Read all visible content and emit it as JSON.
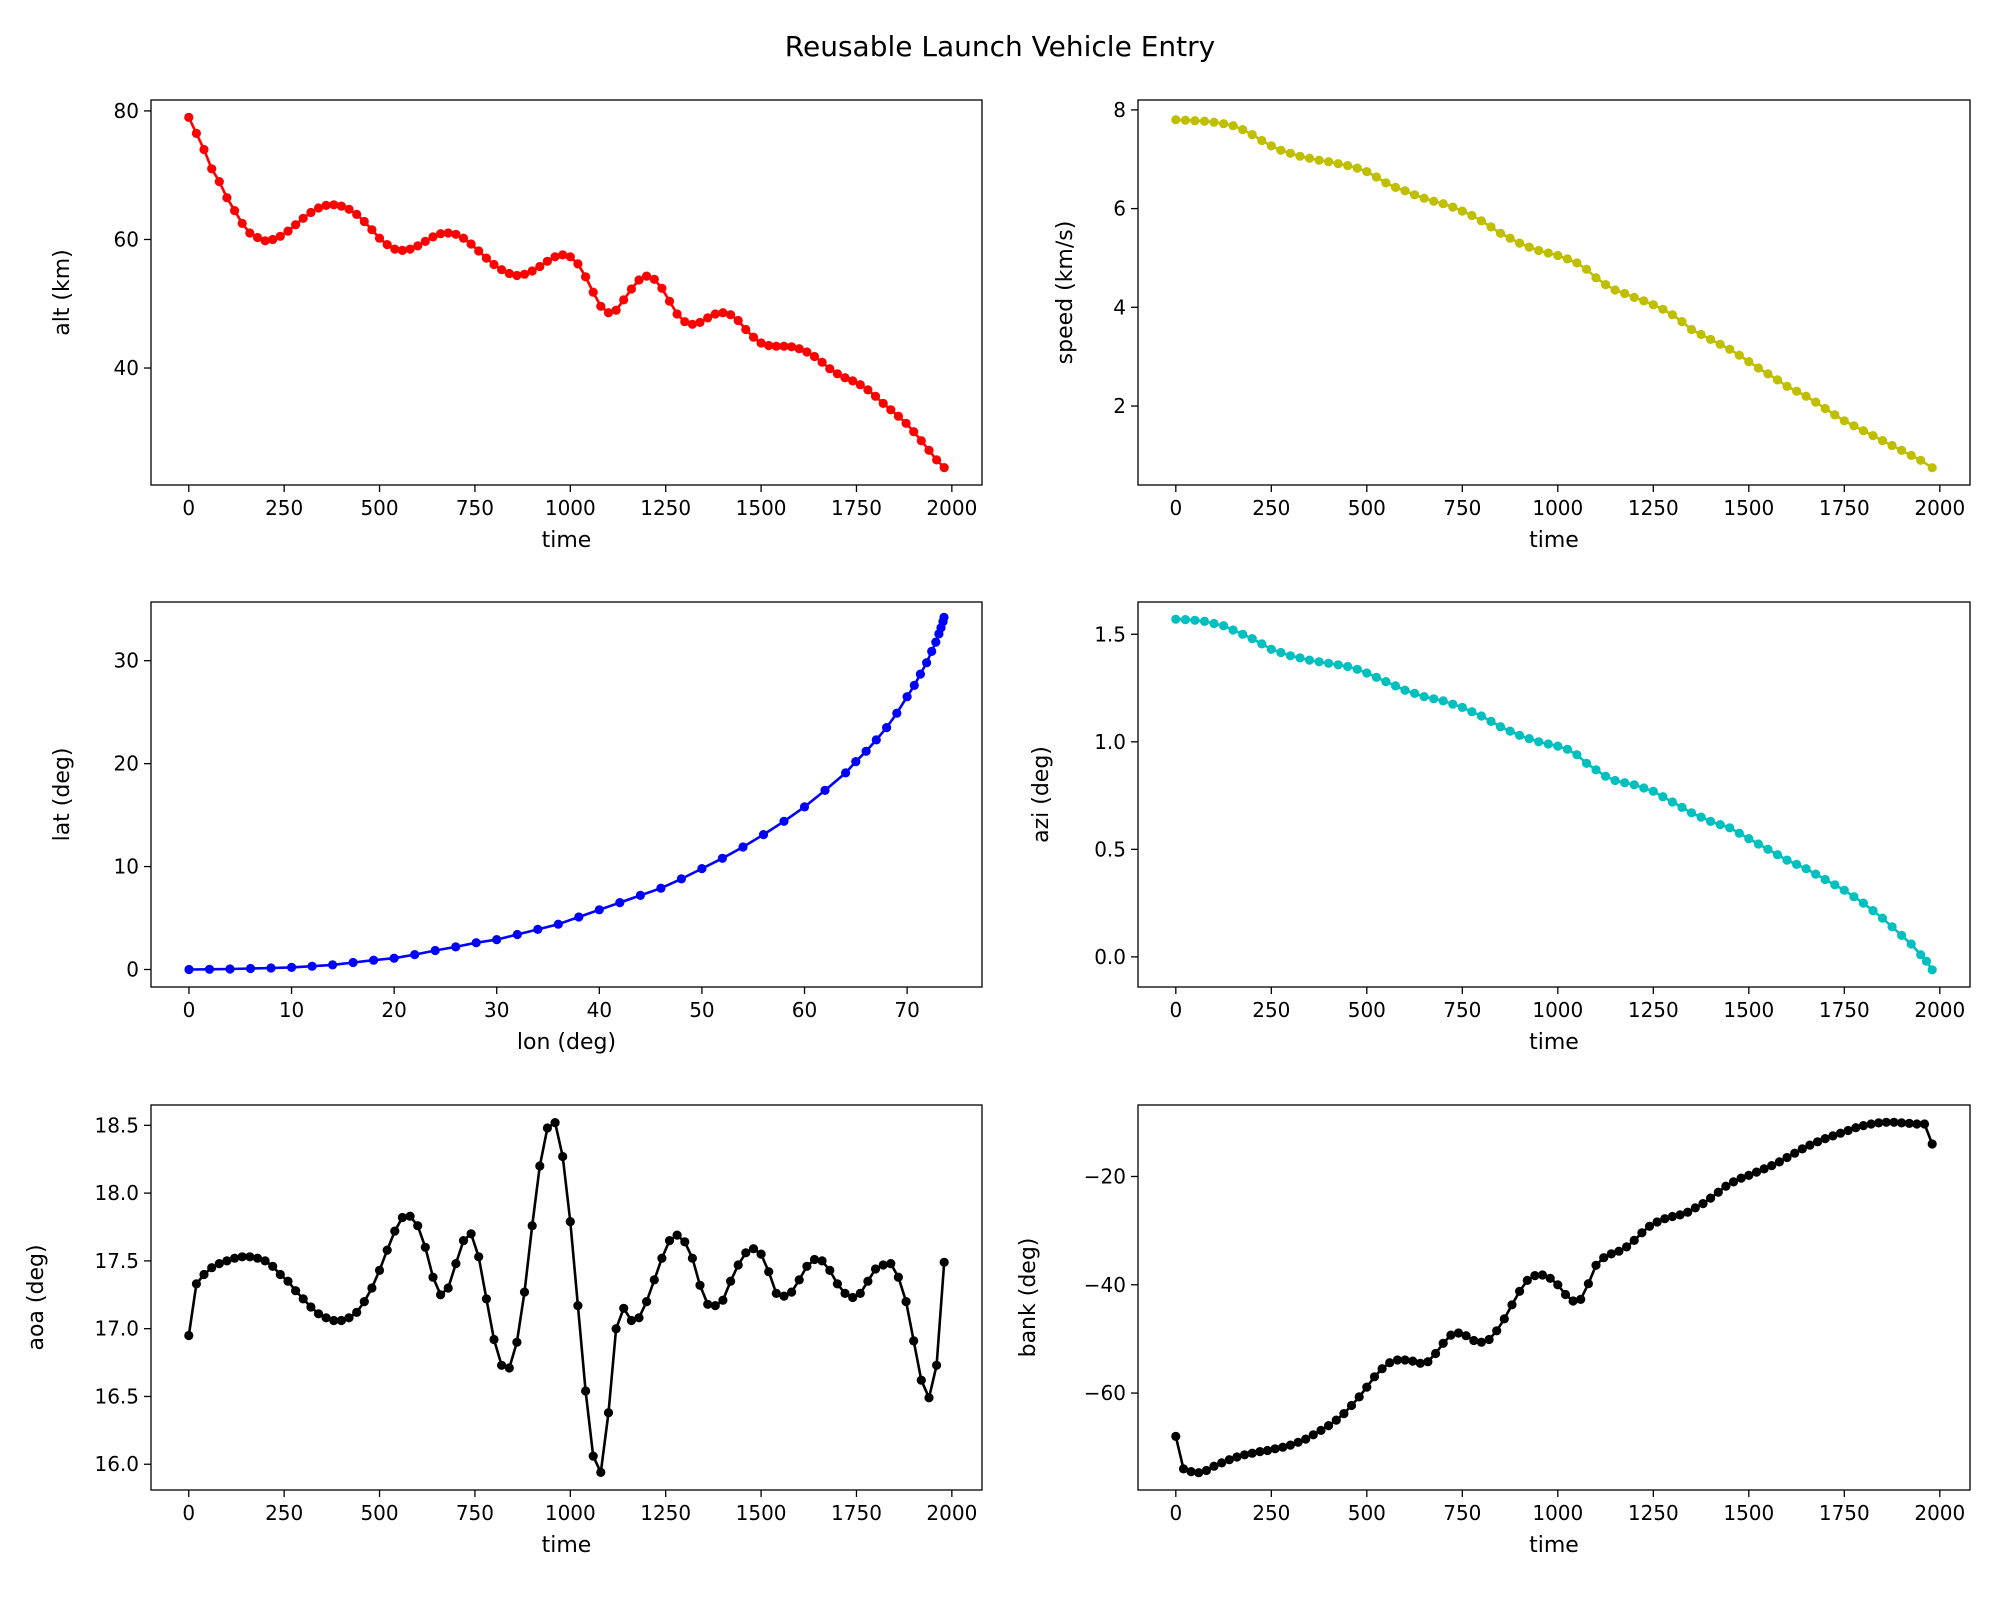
{
  "title": "Reusable Launch Vehicle Entry",
  "chart_data": [
    {
      "type": "line",
      "color": "#ff0000",
      "xlabel": "time",
      "ylabel": "alt (km)",
      "xlim": [
        -99,
        2079
      ],
      "ylim": [
        21.8,
        81.7
      ],
      "xticks": [
        0,
        250,
        500,
        750,
        1000,
        1250,
        1500,
        1750,
        2000
      ],
      "xticklabels": [
        "0",
        "250",
        "500",
        "750",
        "1000",
        "1250",
        "1500",
        "1750",
        "2000"
      ],
      "yticks": [
        40,
        60,
        80
      ],
      "yticklabels": [
        "40",
        "60",
        "80"
      ],
      "x": [
        0,
        20,
        40,
        60,
        80,
        100,
        120,
        140,
        160,
        180,
        200,
        220,
        240,
        260,
        280,
        300,
        320,
        340,
        360,
        380,
        400,
        420,
        440,
        460,
        480,
        500,
        520,
        540,
        560,
        580,
        600,
        620,
        640,
        660,
        680,
        700,
        720,
        740,
        760,
        780,
        800,
        820,
        840,
        860,
        880,
        900,
        920,
        940,
        960,
        980,
        1000,
        1020,
        1040,
        1060,
        1080,
        1100,
        1120,
        1140,
        1160,
        1180,
        1200,
        1220,
        1240,
        1260,
        1280,
        1300,
        1320,
        1340,
        1360,
        1380,
        1400,
        1420,
        1440,
        1460,
        1480,
        1500,
        1520,
        1540,
        1560,
        1580,
        1600,
        1620,
        1640,
        1660,
        1680,
        1700,
        1720,
        1740,
        1760,
        1780,
        1800,
        1820,
        1840,
        1860,
        1880,
        1900,
        1920,
        1940,
        1960,
        1980
      ],
      "y": [
        79,
        76.5,
        74,
        71,
        69,
        66.5,
        64.5,
        62.5,
        61,
        60.3,
        59.8,
        60,
        60.5,
        61.3,
        62.3,
        63.3,
        64.2,
        64.9,
        65.3,
        65.4,
        65.2,
        64.7,
        63.9,
        62.8,
        61.5,
        60.2,
        59.2,
        58.5,
        58.3,
        58.5,
        59,
        59.7,
        60.4,
        60.9,
        61,
        60.8,
        60.2,
        59.3,
        58.2,
        57.1,
        56.1,
        55.3,
        54.7,
        54.4,
        54.6,
        55.1,
        55.8,
        56.6,
        57.3,
        57.6,
        57.3,
        56.2,
        54.2,
        51.8,
        49.6,
        48.6,
        49,
        50.6,
        52.3,
        53.7,
        54.3,
        53.8,
        52.4,
        50.4,
        48.4,
        47.2,
        46.8,
        47.1,
        47.8,
        48.4,
        48.6,
        48.3,
        47.4,
        46,
        44.8,
        43.9,
        43.5,
        43.4,
        43.4,
        43.3,
        43,
        42.5,
        41.8,
        40.9,
        39.9,
        39.1,
        38.5,
        38,
        37.4,
        36.6,
        35.6,
        34.5,
        33.5,
        32.5,
        31.4,
        30.1,
        28.7,
        27.2,
        25.7,
        24.5
      ]
    },
    {
      "type": "line",
      "color": "#bfbf00",
      "xlabel": "time",
      "ylabel": "speed (km/s)",
      "xlim": [
        -99,
        2079
      ],
      "ylim": [
        0.4,
        8.2
      ],
      "xticks": [
        0,
        250,
        500,
        750,
        1000,
        1250,
        1500,
        1750,
        2000
      ],
      "xticklabels": [
        "0",
        "250",
        "500",
        "750",
        "1000",
        "1250",
        "1500",
        "1750",
        "2000"
      ],
      "yticks": [
        2,
        4,
        6,
        8
      ],
      "yticklabels": [
        "2",
        "4",
        "6",
        "8"
      ],
      "x": [
        0,
        25,
        50,
        75,
        100,
        125,
        150,
        175,
        200,
        225,
        250,
        275,
        300,
        325,
        350,
        375,
        400,
        425,
        450,
        475,
        500,
        525,
        550,
        575,
        600,
        625,
        650,
        675,
        700,
        725,
        750,
        775,
        800,
        825,
        850,
        875,
        900,
        925,
        950,
        975,
        1000,
        1025,
        1050,
        1075,
        1100,
        1125,
        1150,
        1175,
        1200,
        1225,
        1250,
        1275,
        1300,
        1325,
        1350,
        1375,
        1400,
        1425,
        1450,
        1475,
        1500,
        1525,
        1550,
        1575,
        1600,
        1625,
        1650,
        1675,
        1700,
        1725,
        1750,
        1775,
        1800,
        1825,
        1850,
        1875,
        1900,
        1925,
        1950,
        1980
      ],
      "y": [
        7.8,
        7.79,
        7.78,
        7.77,
        7.75,
        7.72,
        7.68,
        7.6,
        7.5,
        7.38,
        7.27,
        7.18,
        7.12,
        7.06,
        7.02,
        6.98,
        6.95,
        6.91,
        6.87,
        6.82,
        6.75,
        6.64,
        6.52,
        6.43,
        6.36,
        6.28,
        6.21,
        6.15,
        6.1,
        6.03,
        5.95,
        5.86,
        5.75,
        5.63,
        5.5,
        5.4,
        5.3,
        5.22,
        5.15,
        5.1,
        5.05,
        4.98,
        4.9,
        4.77,
        4.6,
        4.46,
        4.35,
        4.28,
        4.2,
        4.13,
        4.05,
        3.96,
        3.85,
        3.71,
        3.55,
        3.45,
        3.35,
        3.25,
        3.15,
        3.03,
        2.9,
        2.77,
        2.65,
        2.53,
        2.4,
        2.3,
        2.2,
        2.08,
        1.95,
        1.82,
        1.7,
        1.6,
        1.5,
        1.4,
        1.3,
        1.2,
        1.1,
        1.0,
        0.9,
        0.75
      ]
    },
    {
      "type": "line",
      "color": "#0000ff",
      "xlabel": "lon (deg)",
      "ylabel": "lat (deg)",
      "xlim": [
        -3.7,
        77.3
      ],
      "ylim": [
        -1.7,
        35.7
      ],
      "xticks": [
        0,
        10,
        20,
        30,
        40,
        50,
        60,
        70
      ],
      "xticklabels": [
        "0",
        "10",
        "20",
        "30",
        "40",
        "50",
        "60",
        "70"
      ],
      "yticks": [
        0,
        10,
        20,
        30
      ],
      "yticklabels": [
        "0",
        "10",
        "20",
        "30"
      ],
      "x": [
        0,
        2,
        4,
        6,
        8,
        10,
        12,
        14,
        16,
        18,
        20,
        22,
        24,
        26,
        28,
        30,
        32,
        34,
        36,
        38,
        40,
        42,
        44,
        46,
        48,
        50,
        52,
        54,
        56,
        58,
        60,
        62,
        64,
        65,
        66,
        67,
        68,
        69,
        70,
        70.7,
        71.3,
        71.9,
        72.4,
        72.8,
        73.1,
        73.3,
        73.5,
        73.6
      ],
      "y": [
        0,
        0.02,
        0.05,
        0.1,
        0.15,
        0.2,
        0.32,
        0.45,
        0.68,
        0.9,
        1.1,
        1.45,
        1.85,
        2.2,
        2.6,
        2.9,
        3.4,
        3.9,
        4.4,
        5.1,
        5.8,
        6.5,
        7.2,
        7.9,
        8.8,
        9.8,
        10.8,
        11.9,
        13.1,
        14.4,
        15.8,
        17.4,
        19.1,
        20.2,
        21.2,
        22.3,
        23.5,
        24.9,
        26.5,
        27.6,
        28.7,
        29.8,
        30.9,
        31.8,
        32.6,
        33.2,
        33.8,
        34.2
      ]
    },
    {
      "type": "line",
      "color": "#00bfbf",
      "xlabel": "time",
      "ylabel": "azi (deg)",
      "xlim": [
        -99,
        2079
      ],
      "ylim": [
        -0.14,
        1.65
      ],
      "xticks": [
        0,
        250,
        500,
        750,
        1000,
        1250,
        1500,
        1750,
        2000
      ],
      "xticklabels": [
        "0",
        "250",
        "500",
        "750",
        "1000",
        "1250",
        "1500",
        "1750",
        "2000"
      ],
      "yticks": [
        0,
        0.5,
        1,
        1.5
      ],
      "yticklabels": [
        "0.0",
        "0.5",
        "1.0",
        "1.5"
      ],
      "x": [
        0,
        25,
        50,
        75,
        100,
        125,
        150,
        175,
        200,
        225,
        250,
        275,
        300,
        325,
        350,
        375,
        400,
        425,
        450,
        475,
        500,
        525,
        550,
        575,
        600,
        625,
        650,
        675,
        700,
        725,
        750,
        775,
        800,
        825,
        850,
        875,
        900,
        925,
        950,
        975,
        1000,
        1025,
        1050,
        1075,
        1100,
        1125,
        1150,
        1175,
        1200,
        1225,
        1250,
        1275,
        1300,
        1325,
        1350,
        1375,
        1400,
        1425,
        1450,
        1475,
        1500,
        1525,
        1550,
        1575,
        1600,
        1625,
        1650,
        1675,
        1700,
        1725,
        1750,
        1775,
        1800,
        1825,
        1850,
        1875,
        1900,
        1925,
        1950,
        1965,
        1980
      ],
      "y": [
        1.57,
        1.568,
        1.565,
        1.56,
        1.55,
        1.54,
        1.52,
        1.5,
        1.48,
        1.455,
        1.43,
        1.415,
        1.4,
        1.39,
        1.38,
        1.372,
        1.365,
        1.358,
        1.35,
        1.337,
        1.32,
        1.3,
        1.28,
        1.26,
        1.24,
        1.225,
        1.21,
        1.2,
        1.19,
        1.175,
        1.16,
        1.14,
        1.12,
        1.095,
        1.07,
        1.05,
        1.03,
        1.015,
        1.0,
        0.99,
        0.98,
        0.965,
        0.94,
        0.9,
        0.87,
        0.84,
        0.82,
        0.81,
        0.8,
        0.785,
        0.77,
        0.745,
        0.72,
        0.695,
        0.67,
        0.65,
        0.63,
        0.615,
        0.6,
        0.575,
        0.55,
        0.525,
        0.5,
        0.475,
        0.45,
        0.43,
        0.41,
        0.385,
        0.36,
        0.335,
        0.31,
        0.28,
        0.25,
        0.215,
        0.18,
        0.14,
        0.1,
        0.06,
        0.01,
        -0.02,
        -0.06
      ]
    },
    {
      "type": "line",
      "color": "#000000",
      "xlabel": "time",
      "ylabel": "aoa (deg)",
      "xlim": [
        -99,
        2079
      ],
      "ylim": [
        15.81,
        18.65
      ],
      "xticks": [
        0,
        250,
        500,
        750,
        1000,
        1250,
        1500,
        1750,
        2000
      ],
      "xticklabels": [
        "0",
        "250",
        "500",
        "750",
        "1000",
        "1250",
        "1500",
        "1750",
        "2000"
      ],
      "yticks": [
        16,
        16.5,
        17,
        17.5,
        18,
        18.5
      ],
      "yticklabels": [
        "16.0",
        "16.5",
        "17.0",
        "17.5",
        "18.0",
        "18.5"
      ],
      "x": [
        0,
        20,
        40,
        60,
        80,
        100,
        120,
        140,
        160,
        180,
        200,
        220,
        240,
        260,
        280,
        300,
        320,
        340,
        360,
        380,
        400,
        420,
        440,
        460,
        480,
        500,
        520,
        540,
        560,
        580,
        600,
        620,
        640,
        660,
        680,
        700,
        720,
        740,
        760,
        780,
        800,
        820,
        840,
        860,
        880,
        900,
        920,
        940,
        960,
        980,
        1000,
        1020,
        1040,
        1060,
        1080,
        1100,
        1120,
        1140,
        1160,
        1180,
        1200,
        1220,
        1240,
        1260,
        1280,
        1300,
        1320,
        1340,
        1360,
        1380,
        1400,
        1420,
        1440,
        1460,
        1480,
        1500,
        1520,
        1540,
        1560,
        1580,
        1600,
        1620,
        1640,
        1660,
        1680,
        1700,
        1720,
        1740,
        1760,
        1780,
        1800,
        1820,
        1840,
        1860,
        1880,
        1900,
        1920,
        1940,
        1960,
        1980
      ],
      "y": [
        16.95,
        17.33,
        17.4,
        17.45,
        17.48,
        17.5,
        17.52,
        17.53,
        17.53,
        17.52,
        17.5,
        17.46,
        17.4,
        17.35,
        17.28,
        17.22,
        17.16,
        17.11,
        17.08,
        17.06,
        17.06,
        17.08,
        17.12,
        17.2,
        17.3,
        17.43,
        17.58,
        17.72,
        17.82,
        17.83,
        17.76,
        17.6,
        17.38,
        17.25,
        17.3,
        17.48,
        17.65,
        17.7,
        17.53,
        17.22,
        16.92,
        16.73,
        16.71,
        16.9,
        17.27,
        17.76,
        18.2,
        18.48,
        18.52,
        18.27,
        17.79,
        17.17,
        16.54,
        16.06,
        15.94,
        16.38,
        17.0,
        17.15,
        17.06,
        17.08,
        17.2,
        17.36,
        17.52,
        17.65,
        17.69,
        17.64,
        17.52,
        17.32,
        17.18,
        17.17,
        17.21,
        17.35,
        17.47,
        17.56,
        17.59,
        17.55,
        17.42,
        17.26,
        17.24,
        17.27,
        17.36,
        17.46,
        17.51,
        17.5,
        17.43,
        17.33,
        17.26,
        17.23,
        17.26,
        17.35,
        17.44,
        17.47,
        17.48,
        17.38,
        17.2,
        16.91,
        16.62,
        16.49,
        16.73,
        17.49
      ]
    },
    {
      "type": "line",
      "color": "#000000",
      "xlabel": "time",
      "ylabel": "bank (deg)",
      "xlim": [
        -99,
        2079
      ],
      "ylim": [
        -77.9,
        -6.8
      ],
      "xticks": [
        0,
        250,
        500,
        750,
        1000,
        1250,
        1500,
        1750,
        2000
      ],
      "xticklabels": [
        "0",
        "250",
        "500",
        "750",
        "1000",
        "1250",
        "1500",
        "1750",
        "2000"
      ],
      "yticks": [
        -60,
        -40,
        -20
      ],
      "yticklabels": [
        "−60",
        "−40",
        "−20"
      ],
      "x": [
        0,
        20,
        40,
        60,
        80,
        100,
        120,
        140,
        160,
        180,
        200,
        220,
        240,
        260,
        280,
        300,
        320,
        340,
        360,
        380,
        400,
        420,
        440,
        460,
        480,
        500,
        520,
        540,
        560,
        580,
        600,
        620,
        640,
        660,
        680,
        700,
        720,
        740,
        760,
        780,
        800,
        820,
        840,
        860,
        880,
        900,
        920,
        940,
        960,
        980,
        1000,
        1020,
        1040,
        1060,
        1080,
        1100,
        1120,
        1140,
        1160,
        1180,
        1200,
        1220,
        1240,
        1260,
        1280,
        1300,
        1320,
        1340,
        1360,
        1380,
        1400,
        1420,
        1440,
        1460,
        1480,
        1500,
        1520,
        1540,
        1560,
        1580,
        1600,
        1620,
        1640,
        1660,
        1680,
        1700,
        1720,
        1740,
        1760,
        1780,
        1800,
        1820,
        1840,
        1860,
        1880,
        1900,
        1920,
        1940,
        1960,
        1980
      ],
      "y": [
        -68,
        -74,
        -74.5,
        -74.7,
        -74.3,
        -73.5,
        -72.9,
        -72.3,
        -71.8,
        -71.4,
        -71.1,
        -70.8,
        -70.6,
        -70.3,
        -70.0,
        -69.6,
        -69.1,
        -68.5,
        -67.7,
        -66.9,
        -66.0,
        -65.0,
        -63.8,
        -62.3,
        -60.7,
        -58.9,
        -57.0,
        -55.5,
        -54.4,
        -53.9,
        -53.9,
        -54.1,
        -54.5,
        -54.2,
        -52.7,
        -50.8,
        -49.3,
        -48.9,
        -49.4,
        -50.3,
        -50.6,
        -50.1,
        -48.5,
        -46.3,
        -43.7,
        -41.2,
        -39.2,
        -38.3,
        -38.2,
        -38.8,
        -40.0,
        -41.8,
        -43.0,
        -42.7,
        -39.8,
        -36.4,
        -35.0,
        -34.3,
        -33.8,
        -33.0,
        -31.8,
        -30.4,
        -29.2,
        -28.4,
        -27.8,
        -27.4,
        -27.1,
        -26.6,
        -25.8,
        -25.0,
        -24.0,
        -22.9,
        -21.8,
        -21.0,
        -20.3,
        -19.8,
        -19.2,
        -18.6,
        -18.0,
        -17.3,
        -16.5,
        -15.7,
        -14.9,
        -14.2,
        -13.6,
        -13.0,
        -12.5,
        -12.0,
        -11.5,
        -11.0,
        -10.6,
        -10.3,
        -10.1,
        -10.0,
        -10.0,
        -10.1,
        -10.2,
        -10.3,
        -10.3,
        -14.0
      ]
    }
  ]
}
